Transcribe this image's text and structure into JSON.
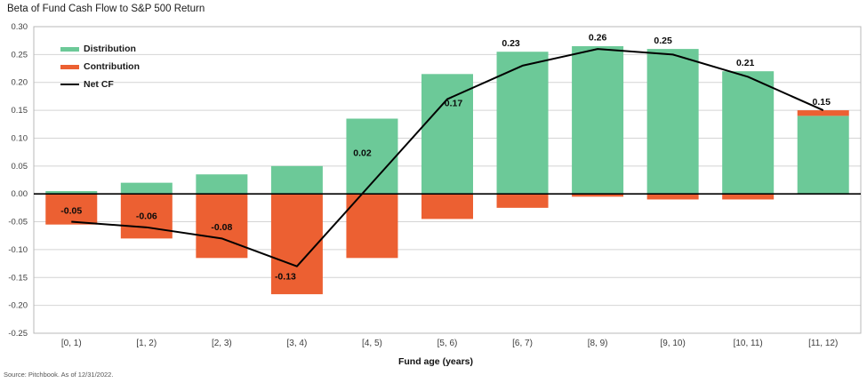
{
  "title": "Beta of Fund Cash Flow to S&P 500 Return",
  "source": "Source: Pitchbook. As of 12/31/2022.",
  "legend": {
    "items": [
      {
        "label": "Distribution",
        "color": "#6CC998",
        "swatch": "rect"
      },
      {
        "label": "Contribution",
        "color": "#EC6032",
        "swatch": "rect"
      },
      {
        "label": "Net CF",
        "color": "#000000",
        "swatch": "line"
      }
    ]
  },
  "chart_data": {
    "type": "bar",
    "title": "Beta of Fund Cash Flow to S&P 500 Return",
    "categories": [
      "[0, 1)",
      "[1, 2)",
      "[2, 3)",
      "[3, 4)",
      "[4, 5)",
      "[5, 6)",
      "[6, 7)",
      "[8, 9)",
      "[9, 10)",
      "[10, 11)",
      "[11, 12)"
    ],
    "series": [
      {
        "name": "Distribution",
        "type": "bar",
        "color": "#6CC998",
        "values": [
          0.005,
          0.02,
          0.035,
          0.05,
          0.135,
          0.215,
          0.255,
          0.265,
          0.26,
          0.22,
          0.14
        ]
      },
      {
        "name": "Contribution",
        "type": "bar",
        "color": "#EC6032",
        "values": [
          -0.055,
          -0.08,
          -0.115,
          -0.18,
          -0.115,
          -0.045,
          -0.025,
          -0.005,
          -0.01,
          -0.01,
          0.01
        ]
      },
      {
        "name": "Net CF",
        "type": "line",
        "color": "#000000",
        "values": [
          -0.05,
          -0.06,
          -0.08,
          -0.13,
          0.02,
          0.17,
          0.23,
          0.26,
          0.25,
          0.21,
          0.15
        ]
      }
    ],
    "value_labels": [
      "-0.05",
      "-0.06",
      "-0.08",
      "-0.13",
      "0.02",
      "0.17",
      "0.23",
      "0.26",
      "0.25",
      "0.21",
      "0.15"
    ],
    "xlabel": "Fund age (years)",
    "ylabel": "",
    "ylim": [
      -0.25,
      0.3
    ],
    "ytick_step": 0.05,
    "grid": true,
    "legend_position": "top-left-inside",
    "bar_mode": "stacked"
  },
  "colors": {
    "grid": "#D4D4D4",
    "border": "#B9B9B9",
    "zero_line": "#000000",
    "axis_text": "#3D3D3D",
    "value_label": "#0A0A0A"
  }
}
